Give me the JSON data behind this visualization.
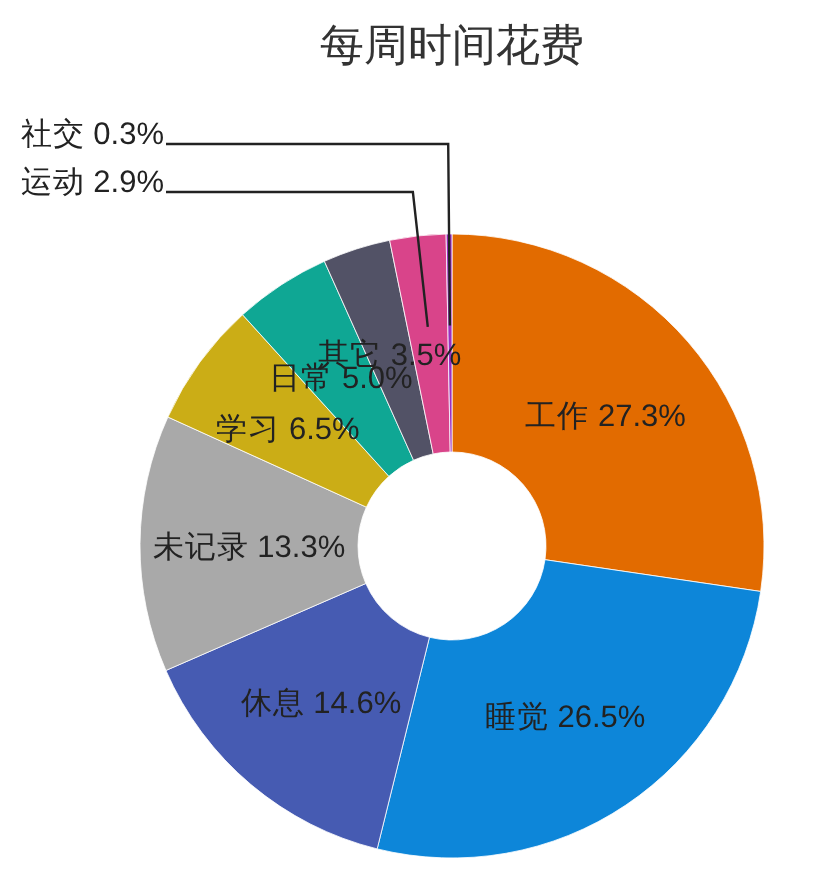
{
  "chart_data": {
    "type": "donut",
    "title": "每周时间花费",
    "categories": [
      "工作",
      "睡觉",
      "休息",
      "未记录",
      "学习",
      "日常",
      "其它",
      "运动",
      "社交"
    ],
    "values": [
      27.3,
      26.5,
      14.6,
      13.3,
      6.5,
      5.0,
      3.5,
      2.9,
      0.3
    ],
    "value_labels": [
      "27.3%",
      "26.5%",
      "14.6%",
      "13.3%",
      "6.5%",
      "5.0%",
      "3.5%",
      "2.9%",
      "0.3%"
    ],
    "colors": [
      "#e26b00",
      "#0d86d9",
      "#465bb2",
      "#a9a9a9",
      "#cbad16",
      "#0fa794",
      "#525266",
      "#d9448a",
      "#9b2fc0"
    ]
  }
}
